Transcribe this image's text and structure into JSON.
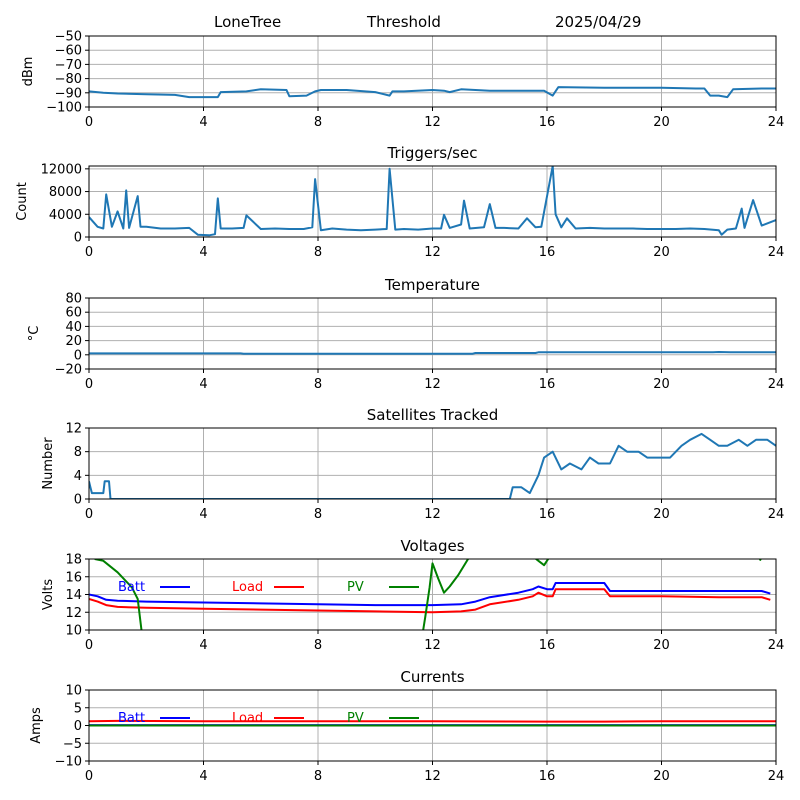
{
  "header": {
    "station": "LoneTree",
    "mode": "Threshold",
    "date": "2025/04/29"
  },
  "chart_data": [
    {
      "type": "line",
      "title": "",
      "ylabel": "dBm",
      "xlim": [
        0,
        24
      ],
      "xticks": [
        0,
        4,
        8,
        12,
        16,
        20,
        24
      ],
      "ylim": [
        -100,
        -50
      ],
      "yticks": [
        -100,
        -90,
        -80,
        -70,
        -60,
        -50
      ],
      "ytick_labels": [
        "−100",
        "−90",
        "−80",
        "−70",
        "−60",
        "−50"
      ],
      "grid": true,
      "series": [
        {
          "color": "#1f77b4",
          "x": [
            0,
            0.5,
            1,
            2,
            3,
            3.5,
            4.5,
            4.6,
            5.5,
            6.0,
            6.9,
            7.0,
            7.6,
            7.9,
            8.1,
            9,
            10,
            10.5,
            10.6,
            11,
            12,
            12.4,
            12.6,
            13,
            14,
            15.5,
            15.9,
            16.2,
            16.4,
            18,
            20,
            21.2,
            21.5,
            21.7,
            22,
            22.3,
            22.5,
            23.5,
            24
          ],
          "y": [
            -89,
            -90,
            -90.5,
            -91,
            -91.5,
            -93,
            -93,
            -89.5,
            -89,
            -87.5,
            -88,
            -92.5,
            -92,
            -89,
            -88,
            -88,
            -89.5,
            -92,
            -89,
            -89,
            -88,
            -88.5,
            -89.5,
            -87.5,
            -88.5,
            -88.5,
            -88.5,
            -92,
            -86,
            -86.5,
            -86.5,
            -87,
            -87,
            -92,
            -92,
            -93,
            -87.5,
            -87,
            -87
          ]
        }
      ]
    },
    {
      "type": "line",
      "title": "Triggers/sec",
      "ylabel": "Count",
      "xlim": [
        0,
        24
      ],
      "xticks": [
        0,
        4,
        8,
        12,
        16,
        20,
        24
      ],
      "ylim": [
        0,
        12500
      ],
      "yticks": [
        0,
        4000,
        8000,
        12000
      ],
      "grid": true,
      "series": [
        {
          "color": "#1f77b4",
          "x": [
            0,
            0.3,
            0.5,
            0.6,
            0.8,
            1.0,
            1.2,
            1.3,
            1.4,
            1.7,
            1.8,
            2.0,
            2.5,
            3.0,
            3.5,
            3.8,
            4.2,
            4.4,
            4.5,
            4.6,
            5.0,
            5.4,
            5.5,
            6.0,
            6.5,
            7.0,
            7.5,
            7.8,
            7.9,
            8.1,
            8.5,
            9.0,
            9.5,
            10.0,
            10.4,
            10.5,
            10.7,
            11,
            11.5,
            12,
            12.3,
            12.4,
            12.6,
            13,
            13.1,
            13.3,
            13.8,
            14.0,
            14.2,
            14.5,
            15,
            15.3,
            15.6,
            15.8,
            16.2,
            16.3,
            16.5,
            16.7,
            17,
            17.5,
            18,
            18.5,
            19,
            19.5,
            20,
            20.5,
            21,
            21.5,
            22,
            22.1,
            22.3,
            22.6,
            22.8,
            22.9,
            23.2,
            23.5,
            24
          ],
          "y": [
            3500,
            1800,
            1500,
            7500,
            1800,
            4500,
            1500,
            8200,
            1600,
            7200,
            1800,
            1800,
            1500,
            1500,
            1600,
            400,
            300,
            500,
            6800,
            1500,
            1500,
            1600,
            3800,
            1400,
            1500,
            1400,
            1400,
            1700,
            10200,
            1200,
            1500,
            1300,
            1200,
            1300,
            1400,
            12000,
            1300,
            1400,
            1300,
            1500,
            1500,
            3900,
            1600,
            2200,
            6400,
            1500,
            1700,
            5800,
            1600,
            1600,
            1500,
            3300,
            1700,
            1800,
            12500,
            4000,
            1700,
            3300,
            1500,
            1600,
            1500,
            1500,
            1500,
            1400,
            1400,
            1400,
            1500,
            1400,
            1200,
            400,
            1300,
            1500,
            5000,
            1600,
            6500,
            2000,
            3000
          ]
        }
      ]
    },
    {
      "type": "line",
      "title": "Temperature",
      "ylabel": "°C",
      "xlim": [
        0,
        24
      ],
      "xticks": [
        0,
        4,
        8,
        12,
        16,
        20,
        24
      ],
      "ylim": [
        -20,
        80
      ],
      "yticks": [
        -20,
        0,
        20,
        40,
        60,
        80
      ],
      "ytick_labels": [
        "−20",
        "0",
        "20",
        "40",
        "60",
        "80"
      ],
      "grid": true,
      "series": [
        {
          "color": "#1f77b4",
          "x": [
            0,
            5.3,
            5.4,
            13.4,
            13.5,
            15.6,
            15.7,
            21.8,
            22.0,
            22.4,
            24
          ],
          "y": [
            2,
            2,
            1.5,
            1.5,
            2.5,
            2.5,
            3.5,
            3.5,
            4,
            3.5,
            3.5
          ]
        }
      ]
    },
    {
      "type": "line",
      "title": "Satellites Tracked",
      "ylabel": "Number",
      "xlim": [
        0,
        24
      ],
      "xticks": [
        0,
        4,
        8,
        12,
        16,
        20,
        24
      ],
      "ylim": [
        0,
        12
      ],
      "yticks": [
        0,
        4,
        8,
        12
      ],
      "grid": true,
      "series": [
        {
          "color": "#1f77b4",
          "x": [
            0,
            0.05,
            0.1,
            0.5,
            0.55,
            0.7,
            0.75,
            14.7,
            14.8,
            15.1,
            15.4,
            15.7,
            15.9,
            16.2,
            16.5,
            16.8,
            17.2,
            17.5,
            17.8,
            18.2,
            18.5,
            18.8,
            19.2,
            19.5,
            19.8,
            20.3,
            20.7,
            21.0,
            21.4,
            21.7,
            22.0,
            22.3,
            22.7,
            23.0,
            23.3,
            23.7,
            24
          ],
          "y": [
            3,
            2,
            1,
            1,
            3,
            3,
            0,
            0,
            2,
            2,
            1,
            4,
            7,
            8,
            5,
            6,
            5,
            7,
            6,
            6,
            9,
            8,
            8,
            7,
            7,
            7,
            9,
            10,
            11,
            10,
            9,
            9,
            10,
            9,
            10,
            10,
            9
          ]
        }
      ]
    },
    {
      "type": "line",
      "title": "Voltages",
      "ylabel": "Volts",
      "xlim": [
        0,
        24
      ],
      "xticks": [
        0,
        4,
        8,
        12,
        16,
        20,
        24
      ],
      "ylim": [
        10,
        18
      ],
      "yticks": [
        10,
        12,
        14,
        16,
        18
      ],
      "grid": true,
      "legend": {
        "placement": "top",
        "items": [
          "Batt",
          "Load",
          "PV"
        ]
      },
      "series": [
        {
          "name": "Batt",
          "color": "#0000ff",
          "x": [
            0,
            0.3,
            0.6,
            1,
            2,
            4,
            6,
            8,
            10,
            12,
            13,
            13.5,
            14,
            15,
            15.5,
            15.7,
            16.0,
            16.2,
            16.3,
            17,
            18,
            18.2,
            20,
            22,
            23.5,
            23.8
          ],
          "y": [
            14.0,
            13.8,
            13.4,
            13.3,
            13.2,
            13.1,
            13.0,
            12.9,
            12.8,
            12.8,
            12.9,
            13.2,
            13.7,
            14.2,
            14.6,
            14.9,
            14.6,
            14.6,
            15.3,
            15.3,
            15.3,
            14.4,
            14.4,
            14.4,
            14.4,
            14.1
          ]
        },
        {
          "name": "Load",
          "color": "#ff0000",
          "x": [
            0,
            0.3,
            0.6,
            1,
            2,
            4,
            6,
            8,
            10,
            12,
            13,
            13.5,
            14,
            15,
            15.5,
            15.7,
            16.0,
            16.2,
            16.3,
            17,
            18,
            18.2,
            20,
            22,
            23.5,
            23.8
          ],
          "y": [
            13.5,
            13.2,
            12.8,
            12.6,
            12.5,
            12.4,
            12.3,
            12.2,
            12.1,
            12.0,
            12.1,
            12.3,
            12.9,
            13.4,
            13.8,
            14.2,
            13.8,
            13.8,
            14.6,
            14.6,
            14.6,
            13.8,
            13.8,
            13.7,
            13.7,
            13.4
          ]
        },
        {
          "name": "PV",
          "color": "#008000",
          "x": [
            0.2,
            0.5,
            1.0,
            1.5,
            1.7,
            1.85,
            11.65,
            11.75,
            11.9,
            12.0,
            12.2,
            12.4,
            12.6,
            12.9,
            13.3,
            15.5,
            15.7,
            15.9,
            16.1,
            23.4,
            23.45,
            23.5
          ],
          "y": [
            18.0,
            17.8,
            16.5,
            14.8,
            13.5,
            9.5,
            9.5,
            11.5,
            14.8,
            17.5,
            15.8,
            14.2,
            14.9,
            16.2,
            18.3,
            18.3,
            17.8,
            17.3,
            18.3,
            18.3,
            17.9,
            18.3
          ]
        }
      ]
    },
    {
      "type": "line",
      "title": "Currents",
      "ylabel": "Amps",
      "xlim": [
        0,
        24
      ],
      "xticks": [
        0,
        4,
        8,
        12,
        16,
        20,
        24
      ],
      "ylim": [
        -10,
        10
      ],
      "yticks": [
        -10,
        -5,
        0,
        5,
        10
      ],
      "ytick_labels": [
        "−10",
        "−5",
        "0",
        "5",
        "10"
      ],
      "grid": true,
      "legend": {
        "placement": "top",
        "items": [
          "Batt",
          "Load",
          "PV"
        ]
      },
      "series": [
        {
          "name": "Batt",
          "color": "#0000ff",
          "x": [
            0,
            24
          ],
          "y": [
            0.1,
            0.1
          ]
        },
        {
          "name": "Load",
          "color": "#ff0000",
          "x": [
            0,
            1,
            4,
            8,
            12,
            16,
            18,
            20,
            24
          ],
          "y": [
            1.2,
            1.3,
            1.2,
            1.2,
            1.2,
            1.1,
            1.1,
            1.2,
            1.2
          ]
        },
        {
          "name": "PV",
          "color": "#008000",
          "x": [
            0,
            24
          ],
          "y": [
            0,
            0
          ]
        }
      ]
    }
  ]
}
